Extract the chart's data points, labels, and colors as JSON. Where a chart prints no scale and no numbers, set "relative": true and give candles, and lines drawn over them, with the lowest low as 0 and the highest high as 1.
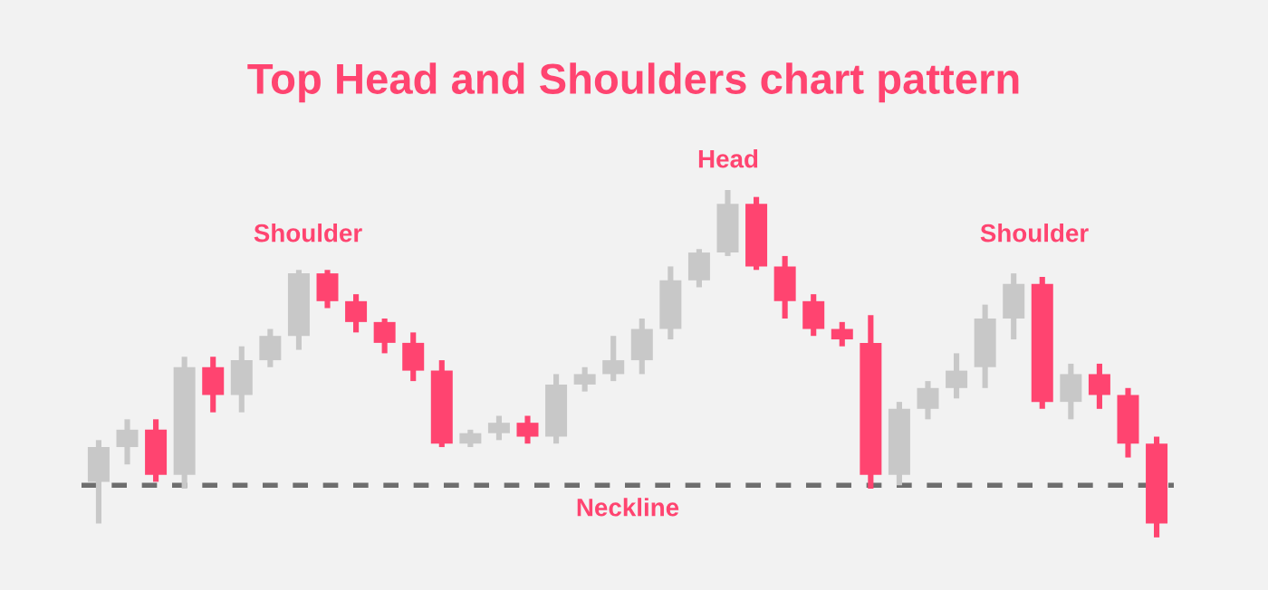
{
  "chart_data": {
    "type": "candlestick",
    "title": "Top Head and Shoulders chart pattern",
    "relative": true,
    "categories": [
      null,
      null,
      null,
      null,
      null,
      null,
      null,
      null,
      null,
      null,
      null,
      null,
      null,
      null,
      null,
      null,
      null,
      null,
      null,
      null,
      null,
      null,
      null,
      null,
      null,
      null,
      null,
      null,
      null,
      null,
      null,
      null,
      null,
      null,
      null,
      null,
      null,
      null
    ],
    "ohlc": [
      [
        0.16,
        0.28,
        0.04,
        0.26
      ],
      [
        0.26,
        0.34,
        0.21,
        0.31
      ],
      [
        0.31,
        0.34,
        0.16,
        0.18
      ],
      [
        0.18,
        0.52,
        0.14,
        0.49
      ],
      [
        0.49,
        0.52,
        0.36,
        0.41
      ],
      [
        0.41,
        0.55,
        0.36,
        0.51
      ],
      [
        0.51,
        0.6,
        0.49,
        0.58
      ],
      [
        0.58,
        0.77,
        0.54,
        0.76
      ],
      [
        0.76,
        0.77,
        0.66,
        0.68
      ],
      [
        0.68,
        0.7,
        0.59,
        0.62
      ],
      [
        0.62,
        0.63,
        0.53,
        0.56
      ],
      [
        0.56,
        0.59,
        0.45,
        0.48
      ],
      [
        0.48,
        0.51,
        0.26,
        0.27
      ],
      [
        0.27,
        0.31,
        0.26,
        0.3
      ],
      [
        0.3,
        0.35,
        0.28,
        0.33
      ],
      [
        0.33,
        0.35,
        0.27,
        0.29
      ],
      [
        0.29,
        0.47,
        0.27,
        0.44
      ],
      [
        0.44,
        0.49,
        0.42,
        0.47
      ],
      [
        0.47,
        0.58,
        0.45,
        0.51
      ],
      [
        0.51,
        0.63,
        0.47,
        0.6
      ],
      [
        0.6,
        0.78,
        0.57,
        0.74
      ],
      [
        0.74,
        0.83,
        0.72,
        0.82
      ],
      [
        0.82,
        1.0,
        0.81,
        0.96
      ],
      [
        0.96,
        0.98,
        0.77,
        0.78
      ],
      [
        0.78,
        0.81,
        0.63,
        0.68
      ],
      [
        0.68,
        0.7,
        0.58,
        0.6
      ],
      [
        0.6,
        0.62,
        0.55,
        0.57
      ],
      [
        0.56,
        0.64,
        0.14,
        0.18
      ],
      [
        0.18,
        0.39,
        0.15,
        0.37
      ],
      [
        0.37,
        0.45,
        0.34,
        0.43
      ],
      [
        0.43,
        0.53,
        0.4,
        0.48
      ],
      [
        0.49,
        0.67,
        0.43,
        0.63
      ],
      [
        0.63,
        0.76,
        0.57,
        0.73
      ],
      [
        0.73,
        0.75,
        0.37,
        0.39
      ],
      [
        0.39,
        0.5,
        0.34,
        0.47
      ],
      [
        0.47,
        0.5,
        0.37,
        0.41
      ],
      [
        0.41,
        0.43,
        0.23,
        0.27
      ],
      [
        0.27,
        0.29,
        0.0,
        0.04
      ]
    ],
    "colors": [
      "#c8c8c8",
      "#c8c8c8",
      "#ff4470",
      "#c8c8c8",
      "#ff4470",
      "#c8c8c8",
      "#c8c8c8",
      "#c8c8c8",
      "#ff4470",
      "#ff4470",
      "#ff4470",
      "#ff4470",
      "#ff4470",
      "#c8c8c8",
      "#c8c8c8",
      "#ff4470",
      "#c8c8c8",
      "#c8c8c8",
      "#c8c8c8",
      "#c8c8c8",
      "#c8c8c8",
      "#c8c8c8",
      "#c8c8c8",
      "#ff4470",
      "#ff4470",
      "#ff4470",
      "#ff4470",
      "#ff4470",
      "#c8c8c8",
      "#c8c8c8",
      "#c8c8c8",
      "#c8c8c8",
      "#c8c8c8",
      "#ff4470",
      "#c8c8c8",
      "#ff4470",
      "#ff4470",
      "#ff4470"
    ],
    "ref_lines": [
      {
        "axis": "y",
        "value": 0.15,
        "label": "Neckline",
        "color": "#6e6e6e",
        "line_style": "dashed"
      }
    ],
    "annotations": [
      "Shoulder",
      "Head",
      "Shoulder"
    ]
  }
}
